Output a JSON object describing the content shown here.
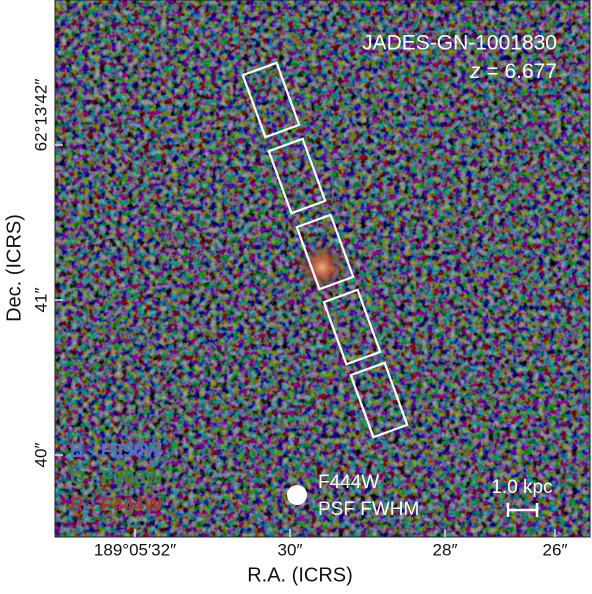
{
  "image": {
    "object_name": "JADES-GN-1001830",
    "redshift_label": "z",
    "redshift_value": "= 6.677",
    "filters": [
      "B - F090W",
      "G - F200W",
      "R - F444W"
    ],
    "psf_label": [
      "F444W",
      "PSF FWHM"
    ],
    "scale_bar": "1.0 kpc"
  },
  "axes": {
    "x_label": "R.A. (ICRS)",
    "y_label": "Dec. (ICRS)",
    "x_ticks": [
      "189°05′32″",
      "30″",
      "28″",
      "26″"
    ],
    "y_ticks": [
      "62°13′42″",
      "41″",
      "40″"
    ]
  }
}
